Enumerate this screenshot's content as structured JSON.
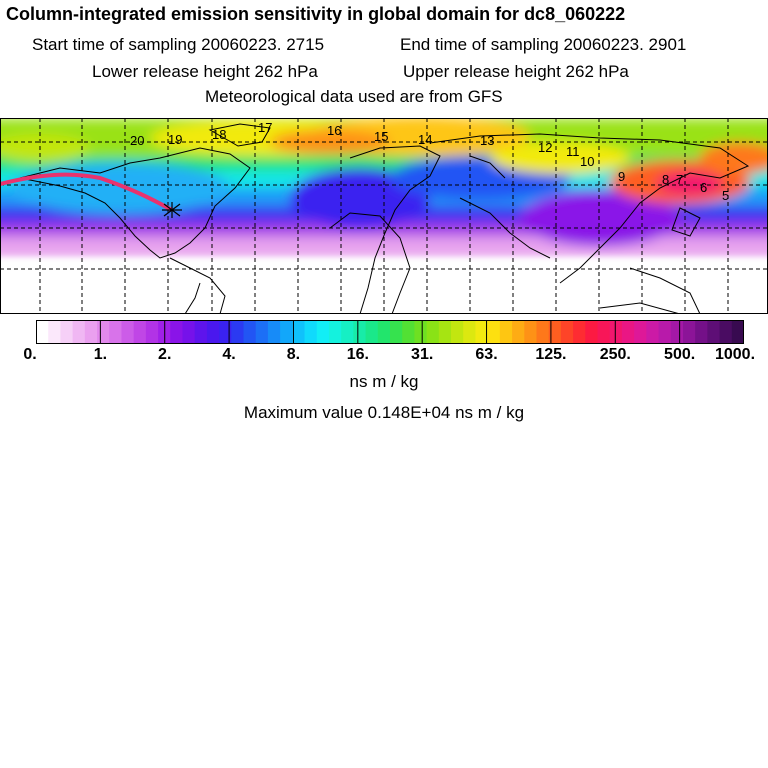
{
  "header": {
    "title": "Column-integrated emission sensitivity in global domain for dc8_060222",
    "sampling_start": "Start time of sampling 20060223.  2715",
    "sampling_end": "End time of sampling 20060223.  2901",
    "release_lower": "Lower release height  262 hPa",
    "release_upper": "Upper release height  262 hPa",
    "met_data": "Meteorological data used are from GFS"
  },
  "map": {
    "track_color": "#e8336e",
    "land_outline_color": "#000000",
    "track_labels": [
      "20",
      "19",
      "18",
      "17",
      "16",
      "15",
      "14",
      "13",
      "12",
      "11",
      "10",
      "9",
      "8",
      "7",
      "6",
      "5"
    ]
  },
  "colorbar": {
    "tick_labels": [
      "0.",
      "1.",
      "2.",
      "4.",
      "8.",
      "16.",
      "31.",
      "63.",
      "125.",
      "250.",
      "500.",
      "1000."
    ],
    "colors": [
      "#ffffff",
      "#fbe8fb",
      "#f6d0f7",
      "#f0b7f3",
      "#eaa0ef",
      "#e289ec",
      "#d873ea",
      "#cc5ce8",
      "#c046e6",
      "#b233e6",
      "#a020e8",
      "#8a14e8",
      "#7612ea",
      "#5e14ec",
      "#4a18ee",
      "#3a22f0",
      "#2b3af2",
      "#2255f4",
      "#1c6ff6",
      "#178bf8",
      "#12a7fa",
      "#10c1fb",
      "#10dafc",
      "#12eef6",
      "#14f2de",
      "#16efc4",
      "#18eca8",
      "#1ae88a",
      "#22e56c",
      "#36e24e",
      "#52e034",
      "#6ee022",
      "#8ae216",
      "#a6e412",
      "#c2e610",
      "#dce810",
      "#f2ea10",
      "#fde010",
      "#fec612",
      "#feac14",
      "#fe9216",
      "#fe781a",
      "#fe5e20",
      "#fe4428",
      "#fe2c32",
      "#fc1a42",
      "#f81658",
      "#f2166e",
      "#ea1684",
      "#de1898",
      "#cc1aa6",
      "#b81aaa",
      "#a418a6",
      "#8c1498",
      "#741088",
      "#5e0e76",
      "#4a0c62",
      "#380a50"
    ],
    "units": "ns m / kg",
    "maximum_label": "Maximum value  0.148E+04 ns m / kg"
  }
}
